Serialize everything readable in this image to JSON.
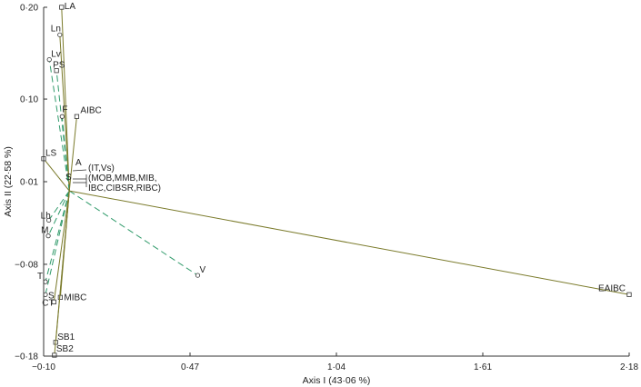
{
  "chart_data": {
    "type": "scatter",
    "xlabel": "Axis I (43·06 %)",
    "ylabel": "Axis II (22·58 %)",
    "xlim": [
      -0.1,
      2.18
    ],
    "ylim": [
      -0.18,
      0.2
    ],
    "x_ticks": [
      -0.1,
      0.47,
      1.04,
      1.61,
      2.18
    ],
    "x_tick_labels": [
      "−0·10",
      "0·47",
      "1·04",
      "1·61",
      "2·18"
    ],
    "y_ticks": [
      -0.18,
      -0.08,
      0.01,
      0.1,
      0.2
    ],
    "y_tick_labels": [
      "−0·18",
      "−0·08",
      "0·01",
      "0·10",
      "0·20"
    ],
    "grid": false,
    "origin": [
      0.0,
      0.0
    ],
    "colors": {
      "solid": "#7a7a2a",
      "dashed": "#2f9a6a",
      "marker": "#333333",
      "axis": "#333333"
    },
    "vectors": [
      {
        "label": "LA",
        "x": -0.03,
        "y": 0.2,
        "marker": "square",
        "style": "solid"
      },
      {
        "label": "Ln",
        "x": -0.037,
        "y": 0.17,
        "marker": "circle",
        "style": "solid"
      },
      {
        "label": "Lv",
        "x": -0.078,
        "y": 0.143,
        "marker": "circle",
        "style": "dashed"
      },
      {
        "label": "PS",
        "x": -0.05,
        "y": 0.131,
        "marker": "square",
        "style": "dashed"
      },
      {
        "label": "F",
        "x": -0.028,
        "y": 0.081,
        "marker": "circle",
        "style": "dashed"
      },
      {
        "label": "AIBC",
        "x": 0.029,
        "y": 0.081,
        "marker": "square",
        "style": "solid"
      },
      {
        "label": "LS",
        "x": -0.1,
        "y": 0.035,
        "marker": "square",
        "style": "solid"
      },
      {
        "label": "Lh",
        "x": -0.08,
        "y": -0.032,
        "marker": "circle",
        "style": "dashed"
      },
      {
        "label": "M",
        "x": -0.082,
        "y": -0.049,
        "marker": "circle",
        "style": "dashed"
      },
      {
        "label": "V",
        "x": 0.5,
        "y": -0.092,
        "marker": "circle",
        "style": "dashed"
      },
      {
        "label": "T",
        "x": -0.093,
        "y": -0.099,
        "marker": "circle",
        "style": "dashed"
      },
      {
        "label": "S",
        "x": -0.093,
        "y": -0.113,
        "marker": "circle",
        "style": "dashed"
      },
      {
        "label": "MIBC",
        "x": -0.035,
        "y": -0.116,
        "marker": "square",
        "style": "solid"
      },
      {
        "label": "CT",
        "x": -0.06,
        "y": -0.121,
        "marker": "square",
        "style": "solid"
      },
      {
        "label": "SB1",
        "x": -0.053,
        "y": -0.165,
        "marker": "square",
        "style": "solid"
      },
      {
        "label": "SB2",
        "x": -0.058,
        "y": -0.179,
        "marker": "square",
        "style": "solid"
      },
      {
        "label": "EAIBC",
        "x": 2.18,
        "y": -0.113,
        "marker": "square",
        "style": "solid"
      }
    ],
    "cluster": {
      "point_labels": [
        "A",
        "S"
      ],
      "group_labels": [
        "(IT,Vs)",
        "(MOB,MMB,MIB,",
        "IBC,CIBSR,RIBC)"
      ]
    }
  }
}
